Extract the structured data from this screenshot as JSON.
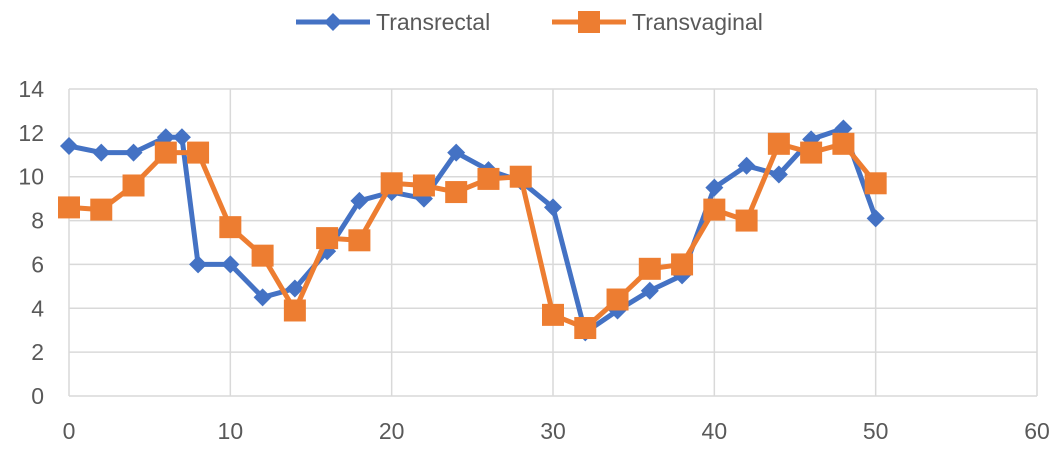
{
  "chart_data": {
    "type": "line",
    "title": "",
    "xlabel": "",
    "ylabel": "",
    "xlim": [
      0,
      60
    ],
    "ylim": [
      0,
      14
    ],
    "xticks": [
      0,
      10,
      20,
      30,
      40,
      50,
      60
    ],
    "yticks": [
      0,
      2,
      4,
      6,
      8,
      10,
      12,
      14
    ],
    "grid": true,
    "legend_position": "top",
    "series": [
      {
        "name": "Transrectal",
        "color": "#4472c4",
        "marker": "diamond",
        "x": [
          0,
          2,
          4,
          6,
          7,
          8,
          10,
          12,
          14,
          16,
          18,
          20,
          22,
          24,
          26,
          28,
          30,
          32,
          34,
          36,
          38,
          40,
          42,
          44,
          46,
          48,
          50
        ],
        "y": [
          11.4,
          11.1,
          11.1,
          11.8,
          11.8,
          6.0,
          6.0,
          4.5,
          4.9,
          6.6,
          8.9,
          9.3,
          9.0,
          11.1,
          10.3,
          9.8,
          8.6,
          2.9,
          3.9,
          4.8,
          5.5,
          9.5,
          10.5,
          10.1,
          11.7,
          12.2,
          8.1
        ]
      },
      {
        "name": "Transvaginal",
        "color": "#ed7d31",
        "marker": "square",
        "x": [
          0,
          2,
          4,
          6,
          8,
          10,
          12,
          14,
          16,
          18,
          20,
          22,
          24,
          26,
          28,
          30,
          32,
          34,
          36,
          38,
          40,
          42,
          44,
          46,
          48,
          50
        ],
        "y": [
          8.6,
          8.5,
          9.6,
          11.1,
          11.1,
          7.7,
          6.4,
          3.9,
          7.2,
          7.1,
          9.7,
          9.6,
          9.3,
          9.9,
          10.0,
          3.7,
          3.1,
          4.4,
          5.8,
          6.0,
          8.5,
          8.0,
          11.5,
          11.1,
          11.5,
          9.7
        ]
      }
    ]
  }
}
